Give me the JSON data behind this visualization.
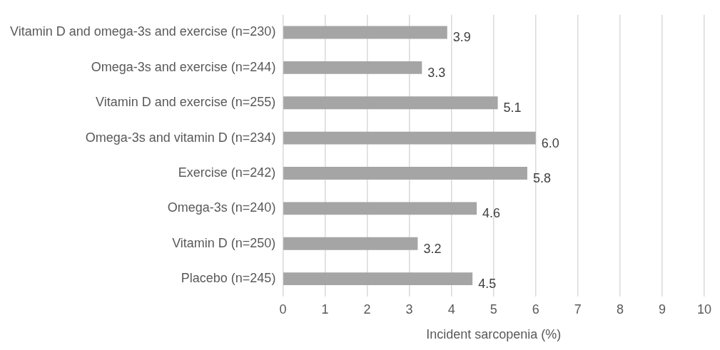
{
  "chart_data": {
    "type": "bar",
    "orientation": "horizontal",
    "categories": [
      "Vitamin D and omega-3s and exercise (n=230)",
      "Omega-3s and exercise (n=244)",
      "Vitamin D and exercise (n=255)",
      "Omega-3s and vitamin D (n=234)",
      "Exercise (n=242)",
      "Omega-3s (n=240)",
      "Vitamin D (n=250)",
      "Placebo (n=245)"
    ],
    "values": [
      3.9,
      3.3,
      5.1,
      6.0,
      5.8,
      4.6,
      3.2,
      4.5
    ],
    "value_labels": [
      "3.9",
      "3.3",
      "5.1",
      "6.0",
      "5.8",
      "4.6",
      "3.2",
      "4.5"
    ],
    "color": "#a5a5a5",
    "xlabel": "Incident sarcopenia (%)",
    "xlim": [
      0,
      10
    ],
    "xticks": [
      0,
      1,
      2,
      3,
      4,
      5,
      6,
      7,
      8,
      9,
      10
    ],
    "grid": "x"
  }
}
